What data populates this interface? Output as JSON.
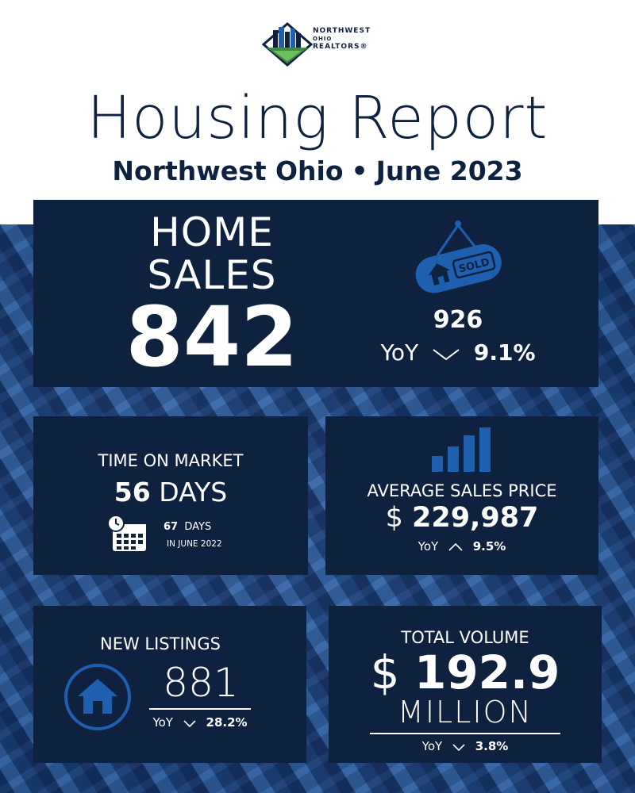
{
  "brand": {
    "line1": "NORTHWEST",
    "line2": "OHIO",
    "line3": "REALTORS®",
    "navy": "#0e2240",
    "accent_blue": "#1f5fb0"
  },
  "header": {
    "title": "Housing Report",
    "region": "Northwest Ohio",
    "separator": "•",
    "period": "June 2023"
  },
  "home_sales": {
    "label_line1": "HOME",
    "label_line2": "SALES",
    "value": "842",
    "icon": "sold-sign-icon",
    "sign_text": "SOLD",
    "previous_value": "926",
    "yoy_label": "YoY",
    "yoy_direction": "down",
    "yoy_change": "9.1%"
  },
  "time_on_market": {
    "label": "TIME ON MARKET",
    "value": "56",
    "unit": "DAYS",
    "icon": "calendar-clock-icon",
    "previous_value": "67",
    "previous_unit": "DAYS",
    "previous_period": "IN JUNE 2022"
  },
  "average_sales_price": {
    "icon": "bar-chart-icon",
    "label": "AVERAGE SALES PRICE",
    "currency": "$",
    "value": "229,987",
    "yoy_label": "YoY",
    "yoy_direction": "up",
    "yoy_change": "9.5%"
  },
  "new_listings": {
    "label": "NEW LISTINGS",
    "icon": "house-icon",
    "value": "881",
    "yoy_label": "YoY",
    "yoy_direction": "down",
    "yoy_change": "28.2%"
  },
  "total_volume": {
    "label": "TOTAL VOLUME",
    "currency": "$",
    "value": "192.9",
    "unit": "MILLION",
    "yoy_label": "YoY",
    "yoy_direction": "down",
    "yoy_change": "3.8%"
  }
}
